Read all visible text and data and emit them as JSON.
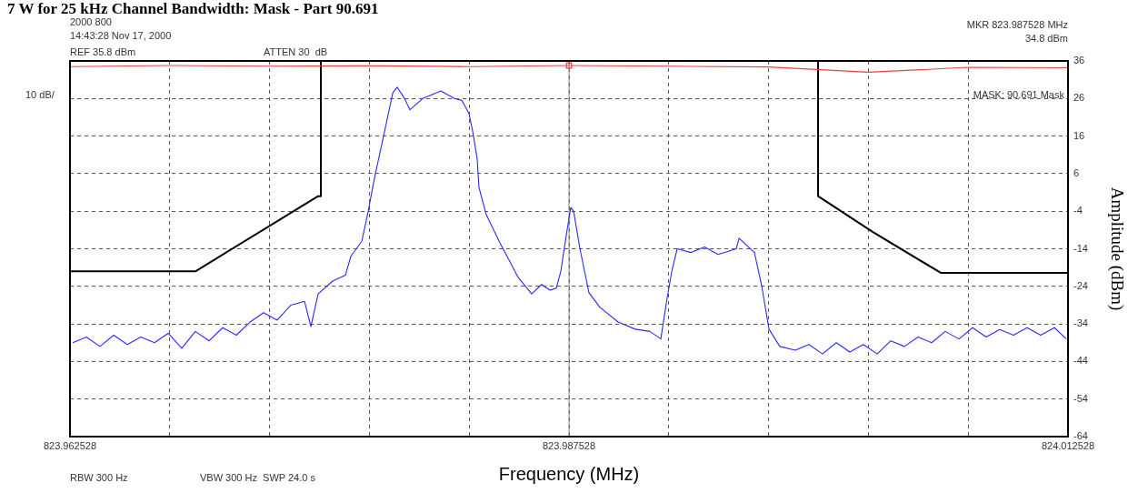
{
  "chart_data": {
    "type": "line",
    "title": "7 W for 25 kHz Channel Bandwidth: Mask - Part 90.691",
    "xlabel": "Frequency (MHz)",
    "ylabel": "Amplitude (dBm)",
    "xlim": [
      823.962528,
      824.012528
    ],
    "xticks": [
      823.962528,
      {
        "value": 823.967528,
        "label": null
      },
      {
        "value": 823.972528,
        "label": null
      },
      {
        "value": 823.977528,
        "label": null
      },
      {
        "value": 823.982528,
        "label": null
      },
      823.987528,
      {
        "value": 823.992528,
        "label": null
      },
      {
        "value": 823.997528,
        "label": null
      },
      {
        "value": 824.002528,
        "label": null
      },
      {
        "value": 824.007528,
        "label": null
      },
      824.012528
    ],
    "ylim": [
      -64,
      36
    ],
    "yticks": [
      36,
      26,
      16,
      6,
      -4,
      -14,
      -24,
      -34,
      -44,
      -54,
      -64
    ],
    "grid": true,
    "legend": false,
    "marker": "none",
    "line_style": "solid",
    "ref_lines": [
      {
        "axis": "x",
        "value": 823.987528,
        "color": "#808080"
      }
    ],
    "annotations": [
      "2000 800",
      "14:43:28 Nov 17, 2000",
      "REF 35.8 dBm",
      "ATTEN 30  dB",
      "MKR 823.987528 MHz",
      "34.8 dBm",
      "10 dB/",
      "MASK: 90.691 Mask",
      "RBW 300 Hz",
      "VBW 300 Hz  SWP 24.0 s"
    ],
    "series": [
      {
        "color": "#ff3b3b",
        "x": [
          823.962528,
          823.967528,
          823.972528,
          823.977528,
          823.982528,
          823.987528,
          823.992528,
          823.997528,
          824.002528,
          824.007528,
          824.012528
        ],
        "values": [
          34.5,
          34.8,
          34.6,
          34.7,
          34.5,
          34.8,
          34.6,
          34.4,
          33,
          34.3,
          34.2
        ]
      },
      {
        "color": "#000000",
        "x": [
          823.962528,
          823.968812,
          823.97496,
          823.975096,
          823.975096,
          823.99,
          824.000005,
          824.000005,
          824.002737,
          824.006153,
          824.012528
        ],
        "values": [
          -20,
          -20,
          0,
          0,
          36,
          null,
          36,
          0,
          -9.5,
          -20.4,
          -20.4
        ]
      },
      {
        "color": "#2a2aff",
        "x": [
          823.962668,
          823.963348,
          823.964028,
          823.964718,
          823.965398,
          823.966078,
          823.966758,
          823.967448,
          823.968128,
          823.968808,
          823.969498,
          823.970178,
          823.970858,
          823.971548,
          823.972228,
          823.972908,
          823.973598,
          823.974278,
          823.974598,
          823.974958,
          823.975688,
          823.976328,
          823.976598,
          823.977148,
          823.977468,
          823.977788,
          823.978238,
          823.978698,
          823.978918,
          823.979288,
          823.979558,
          823.980198,
          823.981108,
          823.981788,
          823.982158,
          823.982518,
          823.982698,
          823.982928,
          823.983018,
          823.983388,
          823.984068,
          823.984528,
          823.984978,
          823.985658,
          823.986158,
          823.986568,
          823.986888,
          823.987118,
          823.987388,
          823.987618,
          823.987758,
          823.988078,
          823.988528,
          823.989078,
          823.989988,
          823.990848,
          823.991578,
          823.992128,
          823.992398,
          823.992678,
          823.992948,
          823.993628,
          823.994318,
          823.994998,
          823.995908,
          823.996048,
          823.996818,
          823.997178,
          823.997548,
          823.998088,
          823.998868,
          823.999548,
          824.000228,
          824.000918,
          824.001598,
          824.002278,
          824.002968,
          824.003648,
          824.004328,
          824.005018,
          824.005698,
          824.006378,
          824.007068,
          824.007748,
          824.008428,
          824.009108,
          824.009798,
          824.010478,
          824.011158,
          824.011848,
          824.012438
        ],
        "values": [
          -39,
          -37.5,
          -40,
          -37,
          -39.5,
          -37.5,
          -39,
          -36.5,
          -40.5,
          -36,
          -38.5,
          -35,
          -37,
          -33.5,
          -31,
          -33,
          -29,
          -28,
          -34.7,
          -26,
          -22.6,
          -21,
          -16,
          -12,
          -4,
          5,
          16,
          27.5,
          29,
          26,
          23,
          26,
          28,
          26,
          25.5,
          22,
          17.4,
          10,
          2.3,
          -5,
          -12.4,
          -17,
          -21.6,
          -26,
          -23.5,
          -25,
          -24.5,
          -20,
          -10.5,
          -3,
          -4,
          -14,
          -25.7,
          -29.6,
          -33.5,
          -35.4,
          -36,
          -38,
          -28.6,
          -20,
          -14,
          -15,
          -13.5,
          -15.5,
          -14,
          -11.2,
          -15,
          -23.8,
          -35.4,
          -40,
          -41,
          -39.5,
          -42,
          -39,
          -41.5,
          -39.5,
          -42,
          -38.5,
          -40,
          -37.5,
          -39,
          -36,
          -38,
          -35,
          -37.5,
          -35.5,
          -37,
          -35,
          -37,
          -35,
          -38
        ]
      },
      {
        "type": "scatter",
        "color": "#ff3b3b",
        "marker": "square",
        "x": [
          823.987528
        ],
        "values": [
          34.8
        ]
      }
    ]
  }
}
